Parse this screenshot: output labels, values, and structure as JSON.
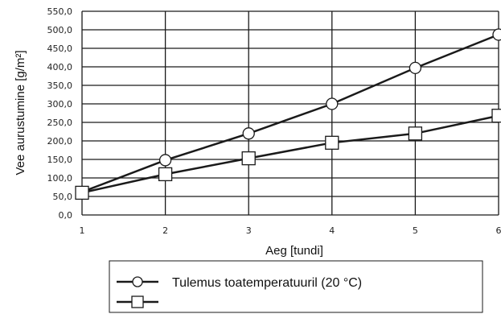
{
  "chart_data": {
    "type": "line",
    "x": [
      1,
      2,
      3,
      4,
      5,
      6
    ],
    "series": [
      {
        "name": "Tulemus toatemperatuuril (20 °C)",
        "marker": "circle",
        "values": [
          62,
          148,
          220,
          300,
          397,
          487
        ]
      },
      {
        "name": "",
        "marker": "square",
        "values": [
          60,
          110,
          153,
          195,
          220,
          268
        ]
      }
    ],
    "xlabel": "Aeg [tundi]",
    "ylabel": "Vee aurustumine [g/m²]",
    "xlim": [
      1,
      6
    ],
    "ylim": [
      0,
      550
    ],
    "yticks": [
      0,
      50,
      100,
      150,
      200,
      250,
      300,
      350,
      400,
      450,
      500,
      550
    ],
    "ytick_labels": [
      "0,0",
      "50,0",
      "100,0",
      "150,0",
      "200,0",
      "250,0",
      "300,0",
      "350,0",
      "400,0",
      "450,0",
      "500,0",
      "550,0"
    ],
    "xtick_labels": [
      "1",
      "2",
      "3",
      "4",
      "5",
      "6"
    ],
    "grid": true,
    "legend_position": "bottom",
    "colors": {
      "line": "#1a1a1a",
      "grid": "#1a1a1a",
      "marker_fill": "#ffffff"
    }
  }
}
